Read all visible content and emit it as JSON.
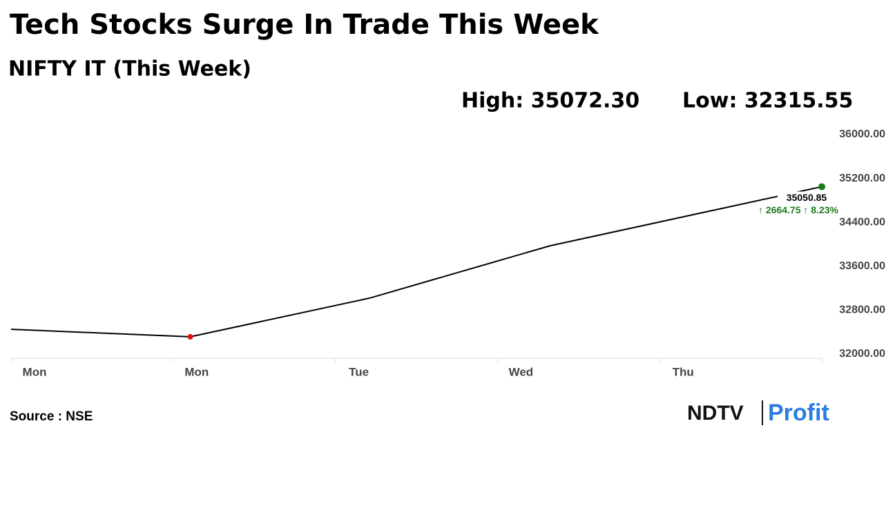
{
  "chart_data": {
    "type": "line",
    "title": "Tech Stocks Surge In Trade This Week",
    "subtitle": "NIFTY IT (This Week)",
    "high_label": "High: 35072.30",
    "low_label": "Low: 32315.55",
    "categories": [
      "Mon",
      "Mon",
      "Tue",
      "Wed",
      "Thu"
    ],
    "series": [
      {
        "color": "#000000",
        "values": [
          32453,
          32315.55,
          33020,
          33975,
          35050.85
        ],
        "value_labels": [
          null,
          null,
          null,
          null,
          "35050.85"
        ]
      }
    ],
    "low_point_color": "#e01010",
    "last_point_color": "#1a7a1a",
    "change_label": "↑ 2664.75 ↑ 8.23%",
    "ylim": [
      32000,
      36000
    ],
    "yticks": [
      {
        "value": 32000,
        "label": "32000.00"
      },
      {
        "value": 32800,
        "label": "32800.00"
      },
      {
        "value": 33600,
        "label": "33600.00"
      },
      {
        "value": 34400,
        "label": "34400.00"
      },
      {
        "value": 35200,
        "label": "35200.00"
      },
      {
        "value": 36000,
        "label": "36000.00"
      }
    ],
    "source": "Source : NSE",
    "brand": "NDTV",
    "brand_sub": "Profit"
  }
}
